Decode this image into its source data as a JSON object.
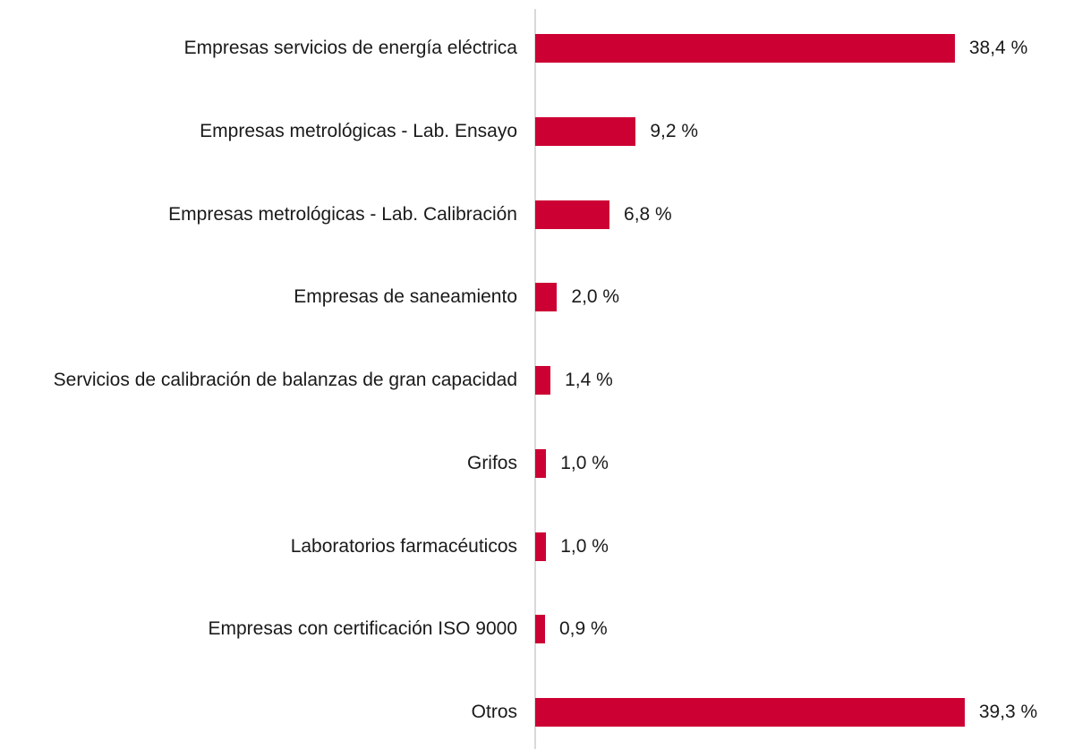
{
  "chart_data": {
    "type": "bar",
    "orientation": "horizontal",
    "categories": [
      "Empresas servicios de energía eléctrica",
      "Empresas metrológicas - Lab. Ensayo",
      "Empresas metrológicas - Lab. Calibración",
      "Empresas de saneamiento",
      "Servicios de calibración de balanzas de gran capacidad",
      "Grifos",
      "Laboratorios farmacéuticos",
      "Empresas con certificación ISO 9000",
      "Otros"
    ],
    "values": [
      38.4,
      9.2,
      6.8,
      2.0,
      1.4,
      1.0,
      1.0,
      0.9,
      39.3
    ],
    "value_labels": [
      "38,4 %",
      "9,2 %",
      "6,8 %",
      "2,0 %",
      "1,4 %",
      "1,0 %",
      "1,0 %",
      "0,9 %",
      "39,3 %"
    ],
    "color": "#cc0033"
  }
}
